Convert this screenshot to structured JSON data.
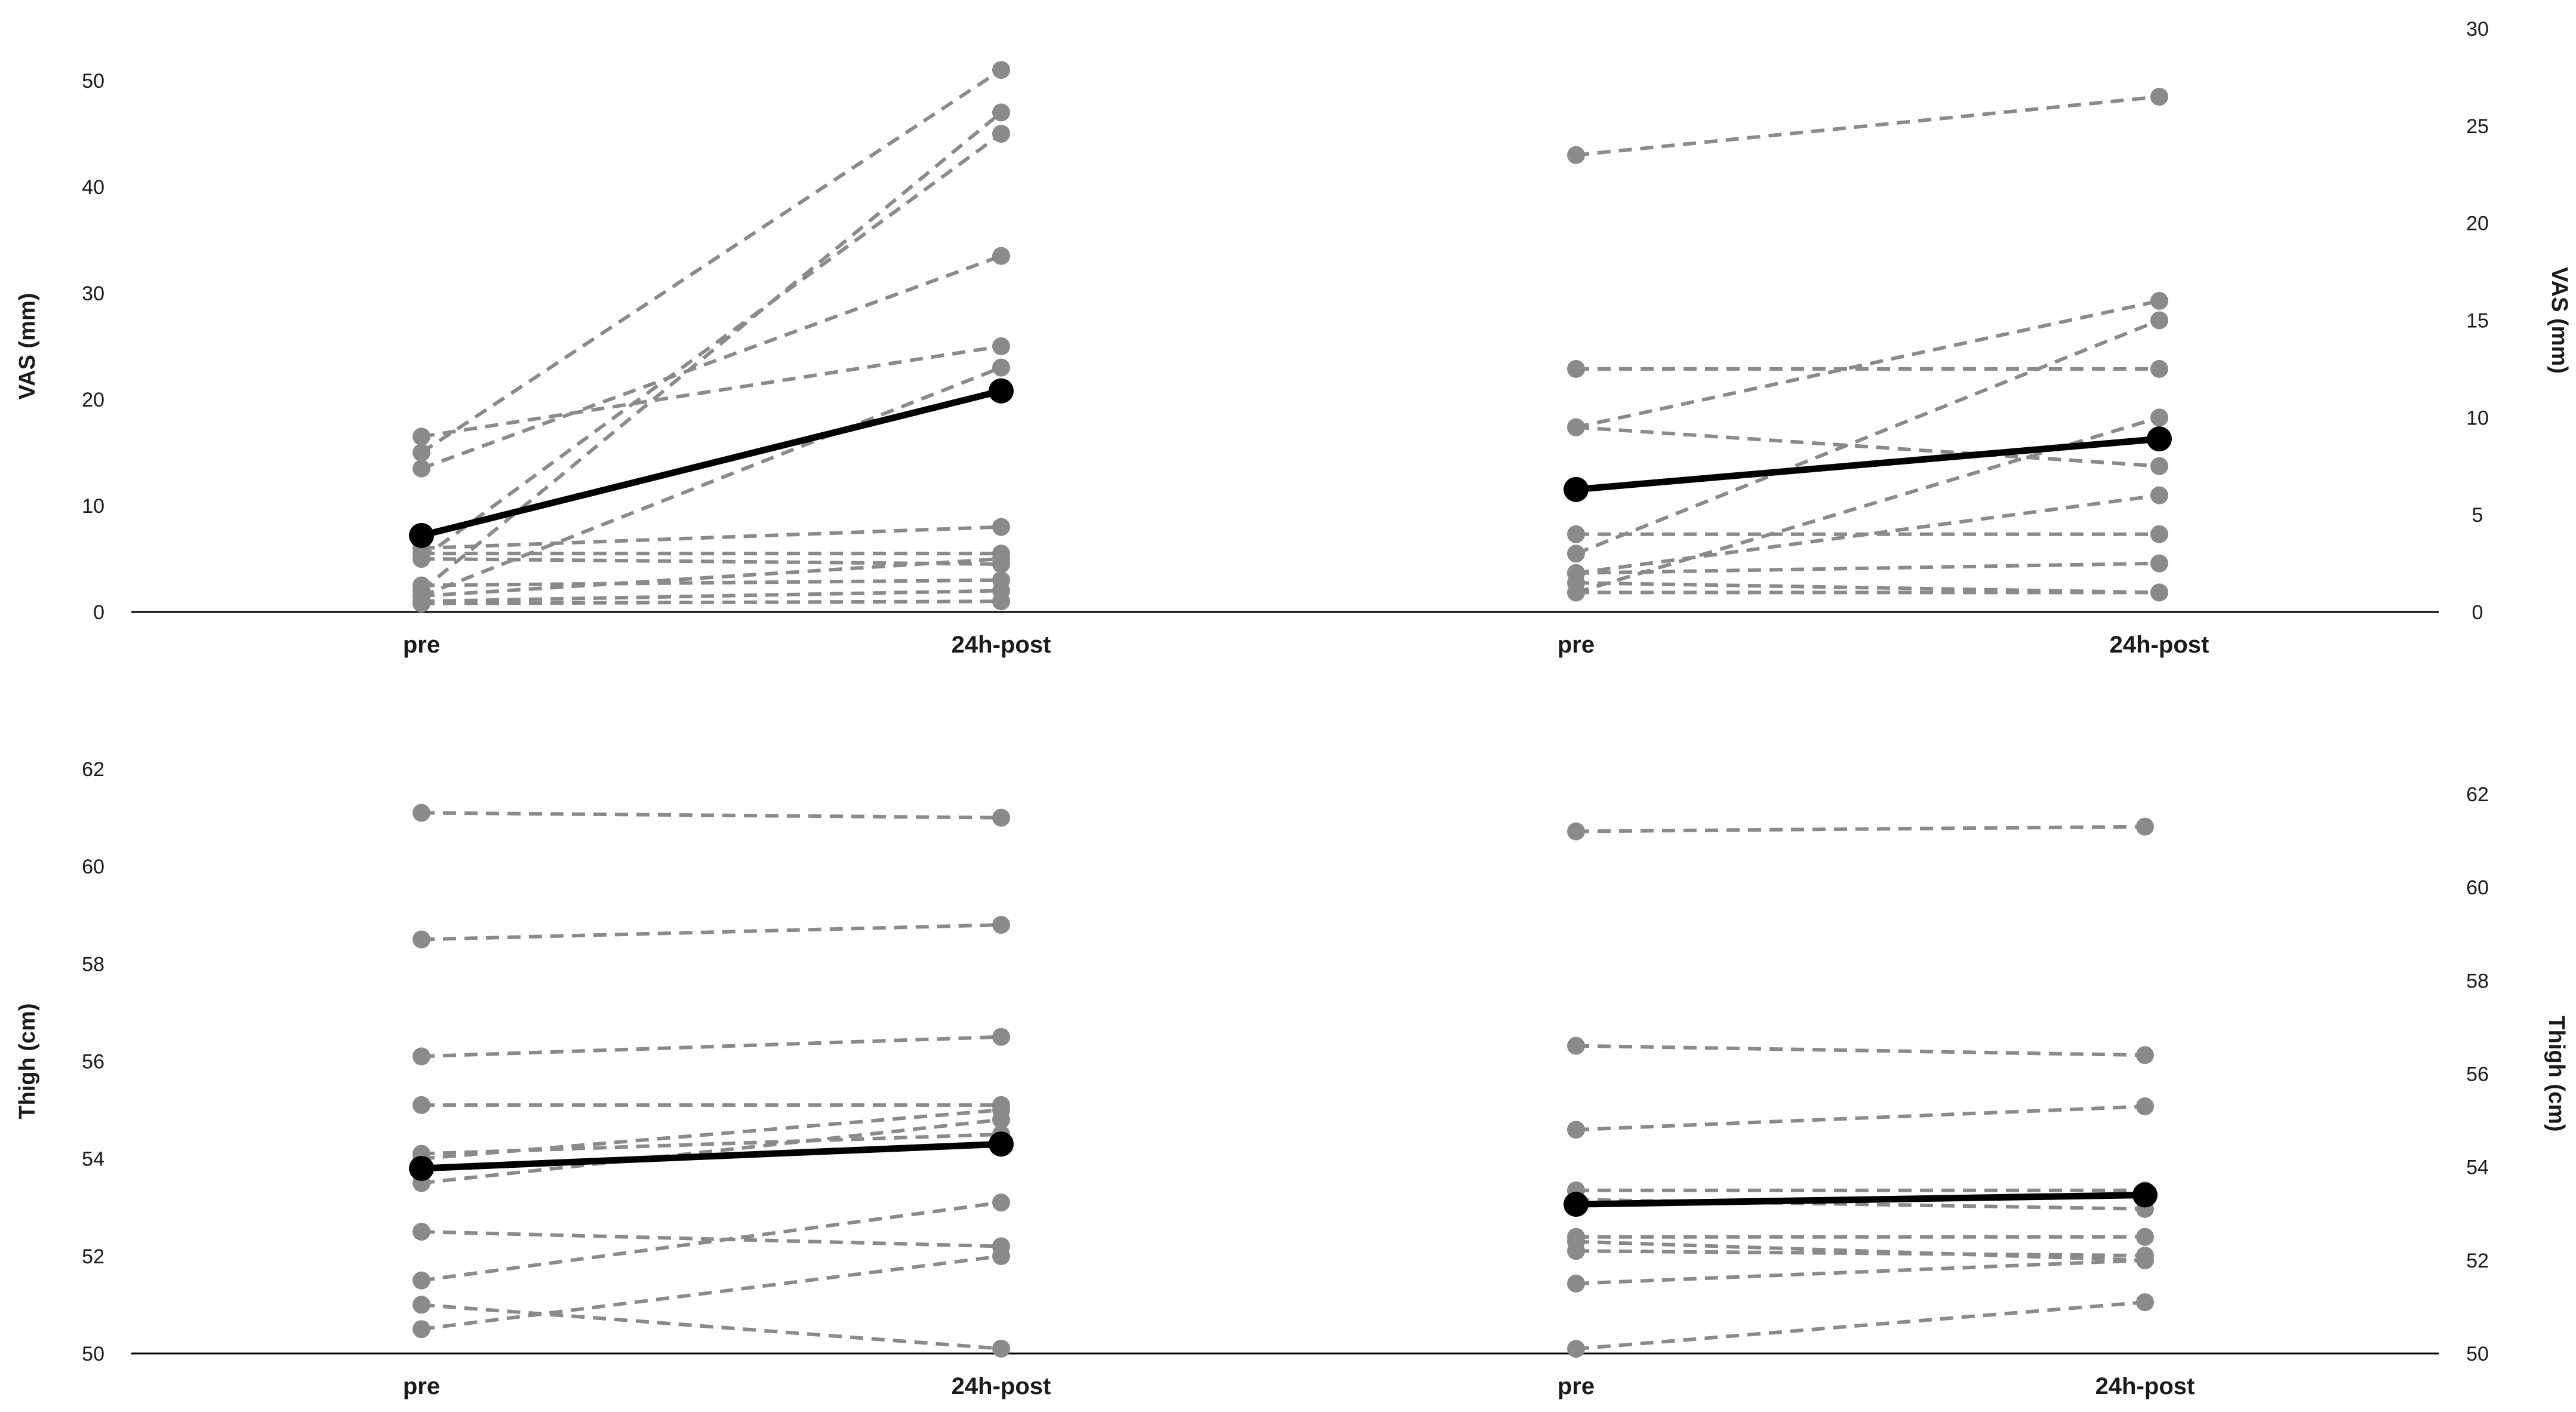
{
  "chart_data": [
    {
      "type": "line",
      "ylabel": "VAS (mm)",
      "ylabel_side": "left",
      "categories": [
        "pre",
        "24h-post"
      ],
      "ylim": [
        0,
        50
      ],
      "yticks": [
        "0",
        "10",
        "20",
        "30",
        "40",
        "50"
      ],
      "individuals": [
        [
          16.5,
          25.0
        ],
        [
          15.0,
          51.0
        ],
        [
          13.5,
          33.5
        ],
        [
          5.0,
          45.0
        ],
        [
          1.5,
          23.0
        ],
        [
          6.0,
          8.0
        ],
        [
          5.5,
          5.5
        ],
        [
          5.0,
          4.5
        ],
        [
          2.5,
          3.0
        ],
        [
          1.0,
          2.0
        ],
        [
          1.5,
          5.0
        ],
        [
          0.8,
          1.0
        ],
        [
          2.0,
          47.0
        ]
      ],
      "mean": [
        7.2,
        20.8
      ]
    },
    {
      "type": "line",
      "ylabel": "VAS (mm)",
      "ylabel_side": "right",
      "categories": [
        "pre",
        "24h-post"
      ],
      "ylim": [
        0,
        30
      ],
      "yticks": [
        "0",
        "5",
        "10",
        "15",
        "20",
        "25",
        "30"
      ],
      "individuals": [
        [
          23.5,
          26.5
        ],
        [
          12.5,
          12.5
        ],
        [
          9.5,
          7.5
        ],
        [
          9.5,
          16.0
        ],
        [
          4.0,
          4.0
        ],
        [
          3.0,
          15.0
        ],
        [
          2.0,
          6.0
        ],
        [
          2.0,
          2.5
        ],
        [
          1.5,
          1.0
        ],
        [
          1.0,
          10.0
        ],
        [
          1.0,
          1.0
        ]
      ],
      "mean": [
        6.3,
        8.9
      ]
    },
    {
      "type": "line",
      "ylabel": "Thigh (cm)",
      "ylabel_side": "left",
      "categories": [
        "pre",
        "24h-post"
      ],
      "ylim": [
        50,
        62
      ],
      "yticks": [
        "50",
        "52",
        "54",
        "56",
        "58",
        "60",
        "62"
      ],
      "individuals": [
        [
          61.1,
          61.0
        ],
        [
          58.5,
          58.8
        ],
        [
          56.1,
          56.5
        ],
        [
          55.1,
          55.1
        ],
        [
          54.1,
          54.5
        ],
        [
          54.0,
          55.0
        ],
        [
          53.5,
          54.8
        ],
        [
          52.5,
          52.2
        ],
        [
          51.5,
          53.1
        ],
        [
          51.0,
          50.1
        ],
        [
          50.5,
          52.0
        ]
      ],
      "mean": [
        53.8,
        54.3
      ]
    },
    {
      "type": "line",
      "ylabel": "Thigh (cm)",
      "ylabel_side": "right",
      "categories": [
        "pre",
        "24h-post"
      ],
      "ylim": [
        50,
        62
      ],
      "yticks": [
        "50",
        "52",
        "54",
        "56",
        "58",
        "60",
        "62"
      ],
      "individuals": [
        [
          61.2,
          61.3
        ],
        [
          56.6,
          56.4
        ],
        [
          54.8,
          55.3
        ],
        [
          53.5,
          53.5
        ],
        [
          53.3,
          53.1
        ],
        [
          52.5,
          52.5
        ],
        [
          52.4,
          52.0
        ],
        [
          52.2,
          52.1
        ],
        [
          51.5,
          52.0
        ],
        [
          50.1,
          51.1
        ]
      ],
      "mean": [
        53.2,
        53.4
      ]
    }
  ]
}
